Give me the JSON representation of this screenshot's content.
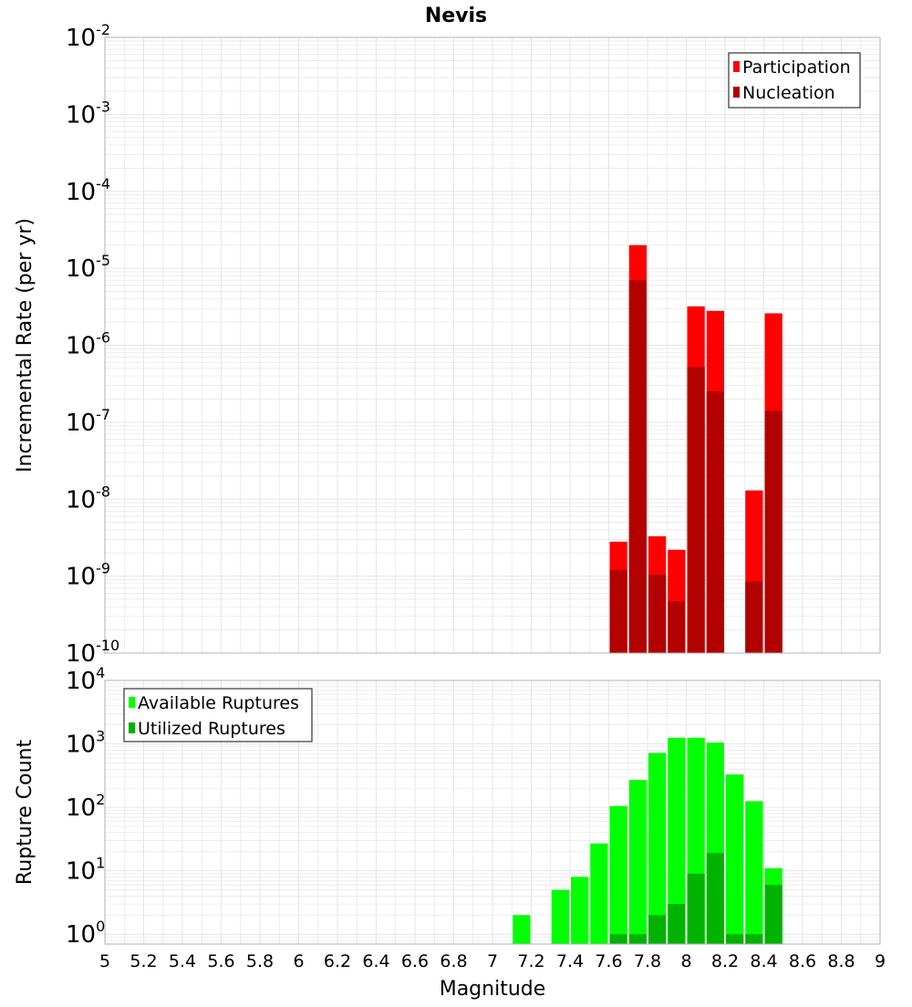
{
  "title": "Nevis",
  "xlabel": "Magnitude",
  "colors": {
    "participation": "#ff0000",
    "nucleation": "#b30000",
    "available": "#00ff00",
    "utilized": "#00b300",
    "grid": "#e6e6e6",
    "axis_border": "#b0b0b0"
  },
  "x_ticks": [
    "5",
    "5.2",
    "5.4",
    "5.6",
    "5.8",
    "6",
    "6.2",
    "6.4",
    "6.6",
    "6.8",
    "7",
    "7.2",
    "7.4",
    "7.6",
    "7.8",
    "8",
    "8.2",
    "8.4",
    "8.6",
    "8.8",
    "9"
  ],
  "chart_data": [
    {
      "type": "bar",
      "yscale": "log",
      "ylabel": "Incremental Rate (per yr)",
      "xlim": [
        5,
        9
      ],
      "ylim": [
        1e-10,
        0.01
      ],
      "grid": true,
      "legend_position": "top-right",
      "y_tick_exponents": [
        "-2",
        "-3",
        "-4",
        "-5",
        "-6",
        "-7",
        "-8",
        "-9",
        "-10"
      ],
      "bin_width": 0.1,
      "x": [
        7.65,
        7.75,
        7.85,
        7.95,
        8.05,
        8.15,
        8.35,
        8.45
      ],
      "series": [
        {
          "name": "Participation",
          "values": [
            2.8e-09,
            2e-05,
            3.3e-09,
            2.2e-09,
            3.2e-06,
            2.8e-06,
            1.3e-08,
            2.6e-06
          ]
        },
        {
          "name": "Nucleation",
          "values": [
            1.2e-09,
            7e-06,
            1.05e-09,
            4.7e-10,
            5.2e-07,
            2.5e-07,
            8.5e-10,
            1.4e-07
          ]
        }
      ]
    },
    {
      "type": "bar",
      "yscale": "log",
      "ylabel": "Rupture Count",
      "xlim": [
        5,
        9
      ],
      "ylim": [
        0.7,
        10000
      ],
      "grid": true,
      "legend_position": "top-left",
      "y_tick_exponents": [
        "4",
        "3",
        "2",
        "1",
        "0"
      ],
      "bin_width": 0.1,
      "x": [
        7.15,
        7.35,
        7.45,
        7.55,
        7.65,
        7.75,
        7.85,
        7.95,
        8.05,
        8.15,
        8.25,
        8.35,
        8.45
      ],
      "series": [
        {
          "name": "Available Ruptures",
          "values": [
            2,
            5,
            8,
            27,
            105,
            270,
            720,
            1250,
            1250,
            1050,
            330,
            125,
            11
          ]
        },
        {
          "name": "Utilized Ruptures",
          "values": [
            0,
            0,
            0,
            0,
            1,
            1,
            2,
            3,
            9,
            19,
            1,
            1,
            6
          ]
        }
      ]
    }
  ]
}
